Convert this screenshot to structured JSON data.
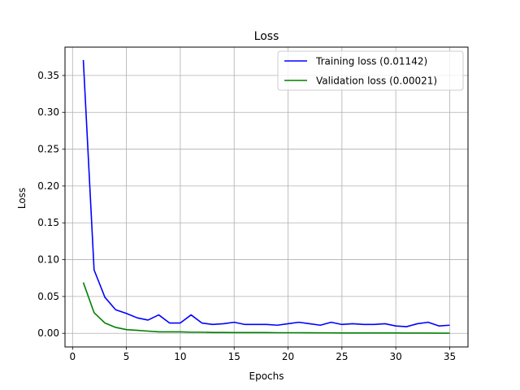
{
  "chart_data": {
    "type": "line",
    "title": "Loss",
    "xlabel": "Epochs",
    "ylabel": "Loss",
    "xlim": [
      -0.7,
      36.7
    ],
    "ylim": [
      -0.0185,
      0.3885
    ],
    "xticks": [
      0,
      5,
      10,
      15,
      20,
      25,
      30,
      35
    ],
    "xtick_labels": [
      "0",
      "5",
      "10",
      "15",
      "20",
      "25",
      "30",
      "35"
    ],
    "yticks": [
      0.0,
      0.05,
      0.1,
      0.15,
      0.2,
      0.25,
      0.3,
      0.35
    ],
    "ytick_labels": [
      "0.00",
      "0.05",
      "0.10",
      "0.15",
      "0.20",
      "0.25",
      "0.30",
      "0.35"
    ],
    "grid": true,
    "legend_position": "upper right",
    "x": [
      1,
      2,
      3,
      4,
      5,
      6,
      7,
      8,
      9,
      10,
      11,
      12,
      13,
      14,
      15,
      16,
      17,
      18,
      19,
      20,
      21,
      22,
      23,
      24,
      25,
      26,
      27,
      28,
      29,
      30,
      31,
      32,
      33,
      34,
      35
    ],
    "series": [
      {
        "name": "Training loss (0.01142)",
        "color": "#0000ff",
        "values": [
          0.371,
          0.086,
          0.049,
          0.032,
          0.027,
          0.021,
          0.018,
          0.025,
          0.014,
          0.014,
          0.025,
          0.014,
          0.012,
          0.013,
          0.015,
          0.012,
          0.012,
          0.012,
          0.011,
          0.013,
          0.015,
          0.013,
          0.011,
          0.015,
          0.012,
          0.013,
          0.012,
          0.012,
          0.013,
          0.01,
          0.009,
          0.013,
          0.015,
          0.01,
          0.011
        ]
      },
      {
        "name": "Validation loss (0.00021)",
        "color": "#008000",
        "values": [
          0.069,
          0.028,
          0.014,
          0.008,
          0.005,
          0.004,
          0.003,
          0.002,
          0.002,
          0.002,
          0.0015,
          0.0015,
          0.0012,
          0.0012,
          0.001,
          0.001,
          0.001,
          0.001,
          0.0008,
          0.0008,
          0.0008,
          0.0007,
          0.0006,
          0.0006,
          0.0005,
          0.0005,
          0.0005,
          0.0004,
          0.0004,
          0.0004,
          0.0003,
          0.0003,
          0.0003,
          0.0002,
          0.0002
        ]
      }
    ]
  }
}
